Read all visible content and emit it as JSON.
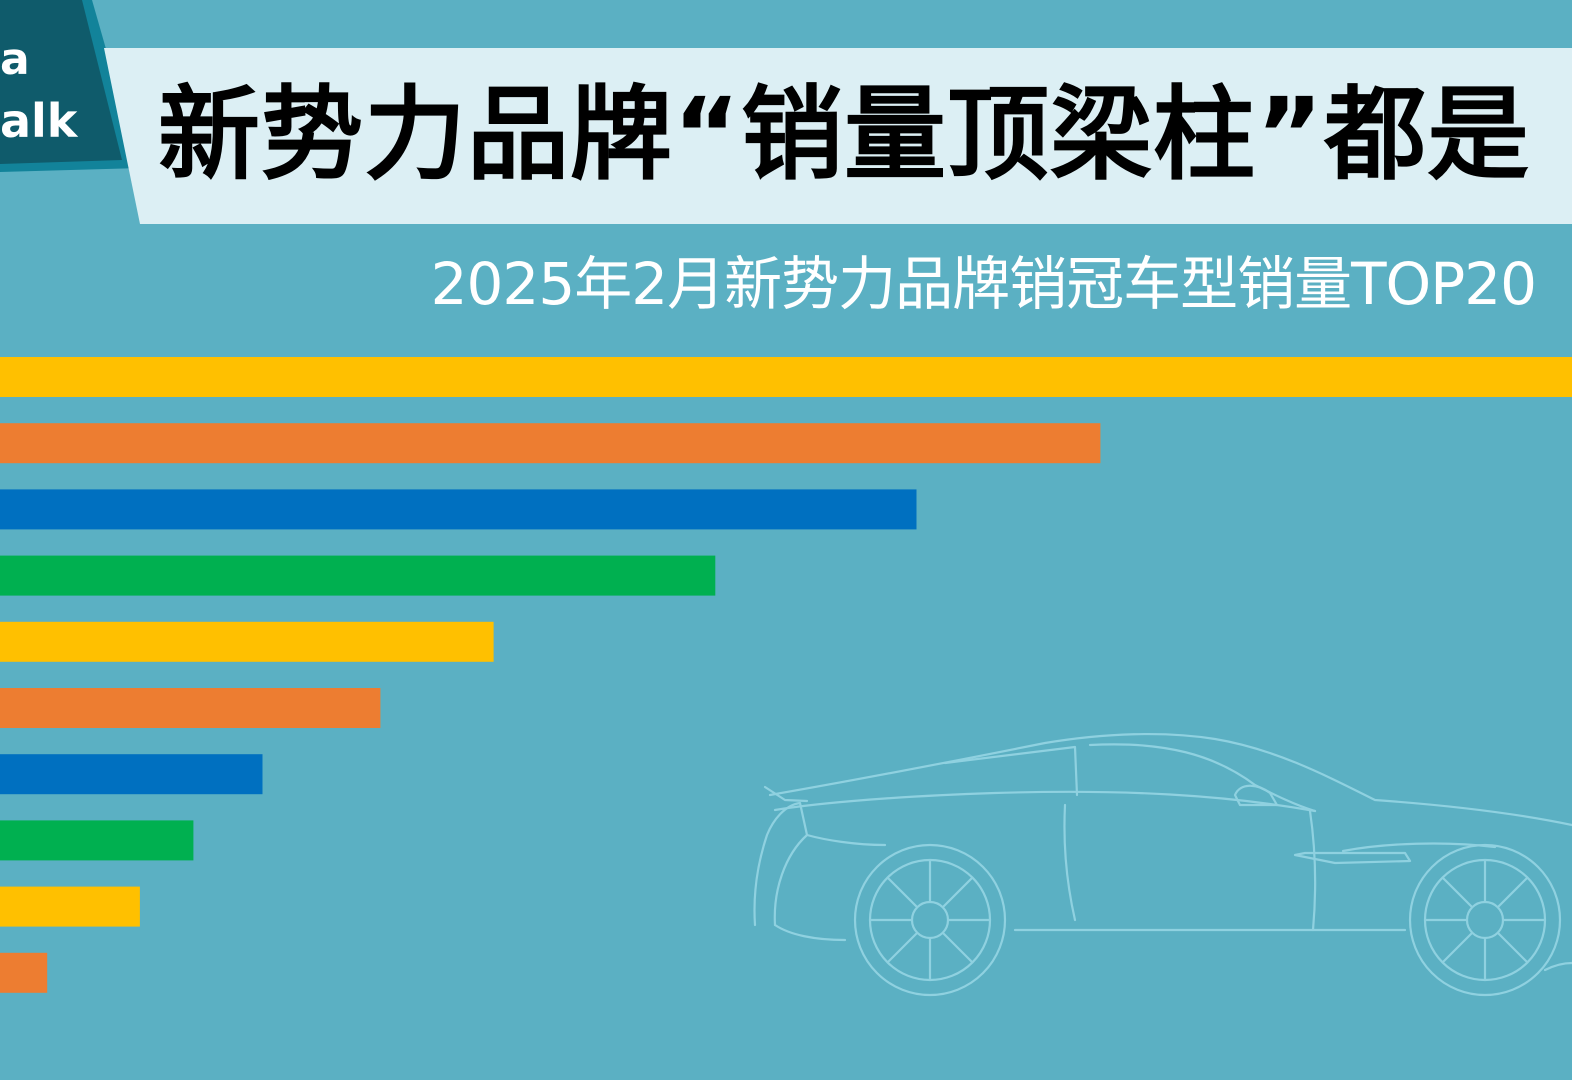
{
  "logo": {
    "line1": "a",
    "line2": "alk",
    "bg_color": "#0f5b6b",
    "border_color": "#12839a"
  },
  "title": "新势力品牌“销量顶梁柱”都是",
  "subtitle": "2025年2月新势力品牌销冠车型销量TOP20",
  "background_color": "#5bb0c3",
  "chart_data": {
    "type": "bar",
    "orientation": "horizontal",
    "title": "2025年2月新势力品牌销冠车型销量TOP20",
    "xlabel": "",
    "ylabel": "",
    "grid": false,
    "legend": "none",
    "series": [
      {
        "values": [
          100,
          70,
          58.3,
          45.5,
          31.4,
          24.2,
          16.7,
          12.3,
          8.9,
          3.0
        ],
        "colors": [
          "#ffc000",
          "#ed7d31",
          "#0070c0",
          "#00b050",
          "#ffc000",
          "#ed7d31",
          "#0070c0",
          "#00b050",
          "#ffc000",
          "#ed7d31"
        ]
      }
    ],
    "xlim": [
      0,
      100
    ]
  }
}
